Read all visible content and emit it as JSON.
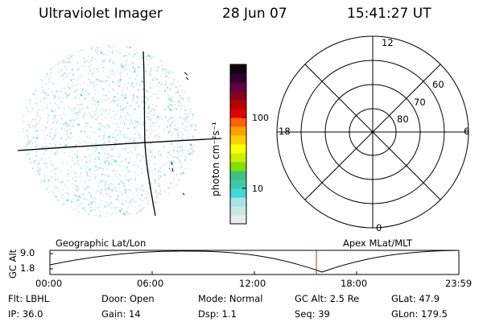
{
  "header": {
    "title": "Ultraviolet Imager",
    "date": "28 Jun 07",
    "time": "15:41:27 UT"
  },
  "colorbar": {
    "unit": "photon cm⁻²s⁻¹",
    "ticks": [
      "100",
      "10"
    ],
    "colors": [
      "#e8ecec",
      "#c8e8e8",
      "#a8e4e4",
      "#40d8d8",
      "#40c8a8",
      "#40c080",
      "#80e000",
      "#c8f000",
      "#ffff00",
      "#ffd000",
      "#ffa000",
      "#ff6000",
      "#e00000",
      "#b80000",
      "#880020",
      "#600040",
      "#300030",
      "#100010"
    ]
  },
  "polar": {
    "mlt_labels": {
      "top": "12",
      "left": "18",
      "right": "6",
      "bottom": "0"
    },
    "lat_labels": [
      "60",
      "70",
      "80"
    ]
  },
  "timeline": {
    "left_label": "Geographic Lat/Lon",
    "right_label": "Apex MLat/MLT",
    "axis_title": "GC Alt",
    "y_ticks": [
      "9.0",
      "1.8"
    ],
    "x_ticks": [
      "00:00",
      "06:00",
      "12:00",
      "18:00",
      "23:59"
    ],
    "marker_color": "#cc2020"
  },
  "info": {
    "row1": {
      "flt": "Flt: LBHL",
      "door": "Door: Open",
      "mode": "Mode: Normal",
      "gcalt": "GC Alt: 2.5 Re",
      "glat": "GLat:  47.9"
    },
    "row2": {
      "ip": "IP: 36.0",
      "gain": "Gain: 14",
      "dsp": "Dsp:     1.1",
      "seq": "Seq: 39",
      "glon": "GLon: 179.5"
    }
  },
  "colors": {
    "speckle": "#9ee0e0",
    "speckle_bright": "#30d8e0",
    "speckle_gray": "#c8d4d4"
  }
}
